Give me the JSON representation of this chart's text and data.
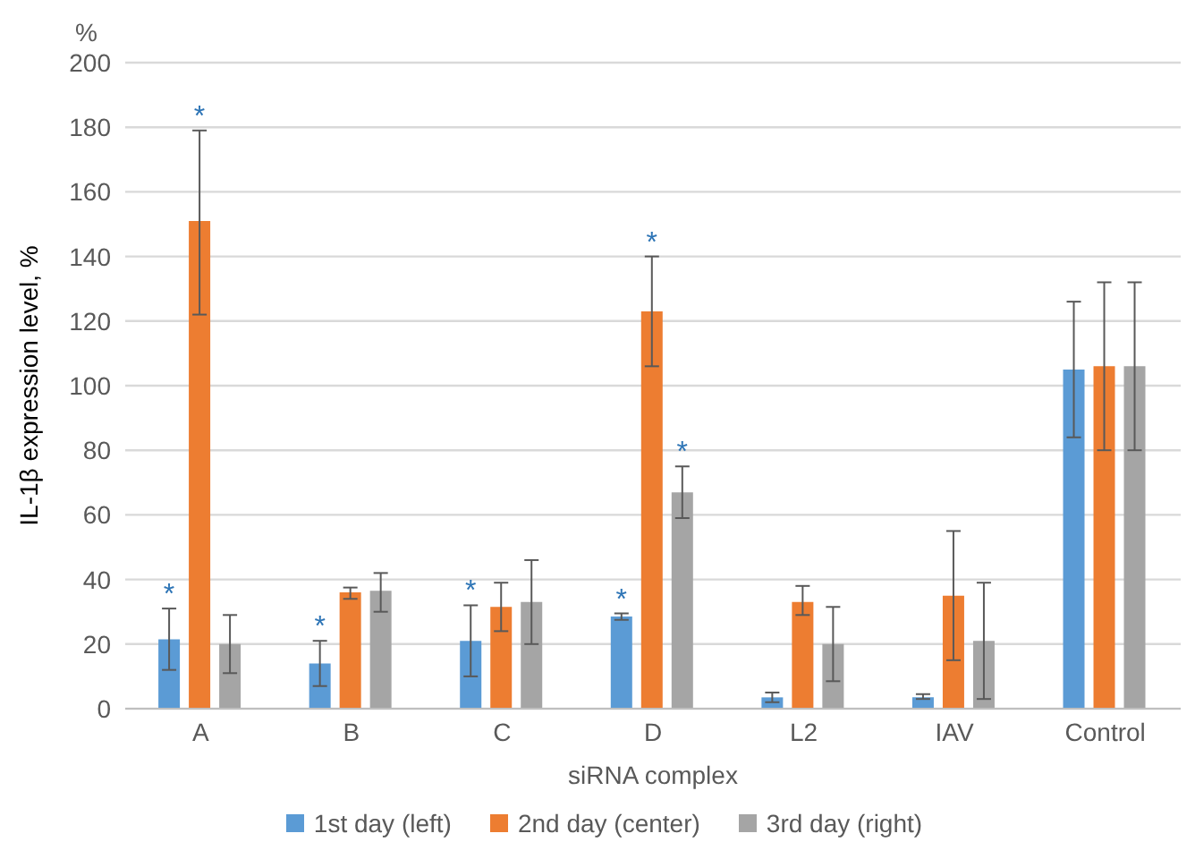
{
  "chart_data": {
    "type": "bar",
    "xlabel": "siRNA complex",
    "ylabel": "IL-1β expression level, %",
    "categories": [
      "A",
      "B",
      "C",
      "D",
      "L2",
      "IAV",
      "Control"
    ],
    "series": [
      {
        "name": "1st day (left)",
        "color": "#5b9bd5",
        "values": [
          21.5,
          14,
          21,
          28.5,
          3.5,
          3.5,
          105
        ],
        "errors": [
          [
            12,
            31
          ],
          [
            7,
            21
          ],
          [
            10,
            32
          ],
          [
            27.5,
            29.5
          ],
          [
            2,
            5
          ],
          [
            3,
            4.5
          ],
          [
            84,
            126
          ]
        ],
        "value_labels": [
          "*",
          "*",
          "*",
          "*",
          null,
          null,
          null
        ]
      },
      {
        "name": "2nd day (center)",
        "color": "#ed7d31",
        "values": [
          151,
          36,
          31.5,
          123,
          33,
          35,
          106
        ],
        "errors": [
          [
            122,
            179
          ],
          [
            34,
            37.5
          ],
          [
            24,
            39
          ],
          [
            106,
            140
          ],
          [
            29,
            38
          ],
          [
            15,
            55
          ],
          [
            80,
            132
          ]
        ],
        "value_labels": [
          "*",
          null,
          null,
          "*",
          null,
          null,
          null
        ]
      },
      {
        "name": "3rd day (right)",
        "color": "#a5a5a5",
        "values": [
          20,
          36.5,
          33,
          67,
          20,
          21,
          106
        ],
        "errors": [
          [
            11,
            29
          ],
          [
            30,
            42
          ],
          [
            20,
            46
          ],
          [
            59,
            75
          ],
          [
            8.5,
            31.5
          ],
          [
            3,
            39
          ],
          [
            80,
            132
          ]
        ],
        "value_labels": [
          null,
          null,
          null,
          "*",
          null,
          null,
          null
        ]
      }
    ],
    "ylim": [
      0,
      200
    ],
    "yticks": [
      0,
      20,
      40,
      60,
      80,
      100,
      120,
      140,
      160,
      180,
      200
    ],
    "grid": "y",
    "legend": "bottom",
    "annotations": [
      "%"
    ]
  }
}
